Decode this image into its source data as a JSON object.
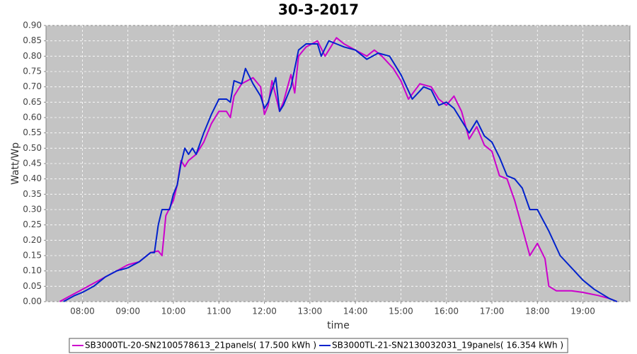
{
  "chart_data": {
    "type": "line",
    "title": "30-3-2017",
    "x_label": "time",
    "y_label": "Watt/Wp",
    "xlim": [
      "07:12",
      "20:02"
    ],
    "xticks": [
      "08:00",
      "09:00",
      "10:00",
      "11:00",
      "12:00",
      "13:00",
      "14:00",
      "15:00",
      "16:00",
      "17:00",
      "18:00",
      "19:00"
    ],
    "ylim": [
      0,
      0.9
    ],
    "yticks": [
      {
        "value": 0,
        "label": "0.00"
      },
      {
        "value": 0.05,
        "label": "0.05"
      },
      {
        "value": 0.1,
        "label": "0.10"
      },
      {
        "value": 0.15,
        "label": "0.15"
      },
      {
        "value": 0.2,
        "label": "0.20"
      },
      {
        "value": 0.25,
        "label": "0.25"
      },
      {
        "value": 0.3,
        "label": "0.30"
      },
      {
        "value": 0.35,
        "label": "0.35"
      },
      {
        "value": 0.4,
        "label": "0.40"
      },
      {
        "value": 0.45,
        "label": "0.45"
      },
      {
        "value": 0.5,
        "label": "0.50"
      },
      {
        "value": 0.55,
        "label": "0.55"
      },
      {
        "value": 0.6,
        "label": "0.60"
      },
      {
        "value": 0.65,
        "label": "0.65"
      },
      {
        "value": 0.7,
        "label": "0.70"
      },
      {
        "value": 0.75,
        "label": "0.75"
      },
      {
        "value": 0.8,
        "label": "0.80"
      },
      {
        "value": 0.85,
        "label": "0.85"
      },
      {
        "value": 0.9,
        "label": "0.90"
      }
    ],
    "grid": true,
    "legend": "bottom",
    "series": [
      {
        "name": "SB3000TL-20-SN2100578613_21panels( 17.500 kWh )",
        "color": "#cc00cc",
        "x": [
          "07:30",
          "07:45",
          "08:00",
          "08:15",
          "08:30",
          "08:45",
          "09:00",
          "09:15",
          "09:30",
          "09:40",
          "09:45",
          "09:50",
          "10:00",
          "10:05",
          "10:10",
          "10:15",
          "10:20",
          "10:30",
          "10:40",
          "10:50",
          "11:00",
          "11:10",
          "11:15",
          "11:20",
          "11:30",
          "11:45",
          "11:55",
          "12:00",
          "12:05",
          "12:10",
          "12:20",
          "12:25",
          "12:35",
          "12:40",
          "12:45",
          "12:55",
          "13:10",
          "13:20",
          "13:35",
          "13:45",
          "14:00",
          "14:15",
          "14:25",
          "14:35",
          "14:50",
          "15:00",
          "15:10",
          "15:25",
          "15:40",
          "15:50",
          "16:00",
          "16:10",
          "16:20",
          "16:30",
          "16:40",
          "16:50",
          "17:00",
          "17:10",
          "17:20",
          "17:30",
          "17:40",
          "17:50",
          "18:00",
          "18:10",
          "18:15",
          "18:25",
          "18:45",
          "19:00",
          "19:20",
          "19:35",
          "19:45"
        ],
        "values": [
          0,
          0.02,
          0.04,
          0.06,
          0.08,
          0.1,
          0.12,
          0.13,
          0.16,
          0.165,
          0.15,
          0.28,
          0.33,
          0.38,
          0.46,
          0.44,
          0.46,
          0.48,
          0.52,
          0.58,
          0.62,
          0.62,
          0.6,
          0.67,
          0.71,
          0.73,
          0.7,
          0.61,
          0.64,
          0.72,
          0.62,
          0.65,
          0.74,
          0.68,
          0.8,
          0.83,
          0.85,
          0.8,
          0.86,
          0.84,
          0.82,
          0.8,
          0.82,
          0.8,
          0.76,
          0.72,
          0.66,
          0.71,
          0.7,
          0.66,
          0.64,
          0.67,
          0.62,
          0.53,
          0.57,
          0.51,
          0.49,
          0.41,
          0.4,
          0.33,
          0.24,
          0.15,
          0.19,
          0.14,
          0.05,
          0.035,
          0.035,
          0.03,
          0.02,
          0.01,
          0
        ]
      },
      {
        "name": "SB3000TL-21-SN2130032031_19panels( 16.354 kWh )",
        "color": "#0022cc",
        "x": [
          "07:35",
          "07:50",
          "08:00",
          "08:15",
          "08:30",
          "08:45",
          "09:00",
          "09:15",
          "09:30",
          "09:35",
          "09:40",
          "09:45",
          "09:55",
          "10:00",
          "10:05",
          "10:10",
          "10:15",
          "10:20",
          "10:25",
          "10:30",
          "10:40",
          "10:50",
          "11:00",
          "11:10",
          "11:15",
          "11:20",
          "11:30",
          "11:35",
          "11:45",
          "11:55",
          "12:00",
          "12:05",
          "12:15",
          "12:20",
          "12:25",
          "12:35",
          "12:45",
          "12:55",
          "13:10",
          "13:15",
          "13:25",
          "13:35",
          "13:45",
          "14:00",
          "14:15",
          "14:30",
          "14:45",
          "15:00",
          "15:15",
          "15:30",
          "15:40",
          "15:50",
          "16:00",
          "16:10",
          "16:20",
          "16:30",
          "16:40",
          "16:50",
          "17:00",
          "17:10",
          "17:20",
          "17:30",
          "17:40",
          "17:50",
          "18:00",
          "18:15",
          "18:30",
          "18:45",
          "19:00",
          "19:15",
          "19:35",
          "19:45"
        ],
        "values": [
          0,
          0.02,
          0.03,
          0.05,
          0.08,
          0.1,
          0.11,
          0.13,
          0.16,
          0.16,
          0.25,
          0.3,
          0.3,
          0.35,
          0.38,
          0.45,
          0.5,
          0.48,
          0.5,
          0.48,
          0.55,
          0.61,
          0.66,
          0.66,
          0.65,
          0.72,
          0.71,
          0.76,
          0.71,
          0.67,
          0.63,
          0.65,
          0.73,
          0.62,
          0.64,
          0.7,
          0.82,
          0.84,
          0.84,
          0.8,
          0.85,
          0.84,
          0.83,
          0.82,
          0.79,
          0.81,
          0.8,
          0.74,
          0.66,
          0.7,
          0.69,
          0.64,
          0.65,
          0.63,
          0.59,
          0.55,
          0.59,
          0.54,
          0.52,
          0.47,
          0.41,
          0.4,
          0.37,
          0.3,
          0.3,
          0.23,
          0.15,
          0.11,
          0.07,
          0.04,
          0.01,
          0
        ]
      }
    ]
  }
}
